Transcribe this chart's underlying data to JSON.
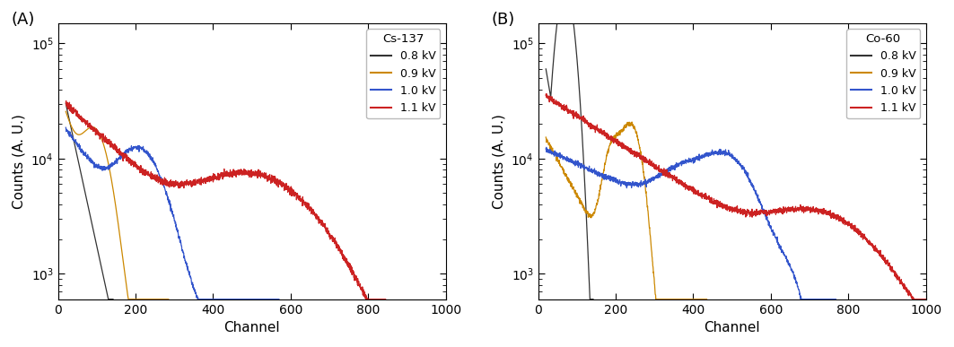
{
  "title_A": "(A)",
  "title_B": "(B)",
  "xlabel": "Channel",
  "ylabel": "Counts (A. U.)",
  "legend_title_A": "Cs-137",
  "legend_title_B": "Co-60",
  "legend_labels": [
    "0.8 kV",
    "0.9 kV",
    "1.0 kV",
    "1.1 kV"
  ],
  "colors": [
    "#333333",
    "#cc8800",
    "#3355cc",
    "#cc2222"
  ],
  "xlim": [
    0,
    1000
  ],
  "ylim_log": [
    600,
    150000
  ],
  "yticks": [
    1000,
    10000,
    100000
  ],
  "xticks": [
    0,
    200,
    400,
    600,
    800,
    1000
  ],
  "background_color": "#ffffff",
  "linewidth": 0.9,
  "noise_lw": 0.6
}
